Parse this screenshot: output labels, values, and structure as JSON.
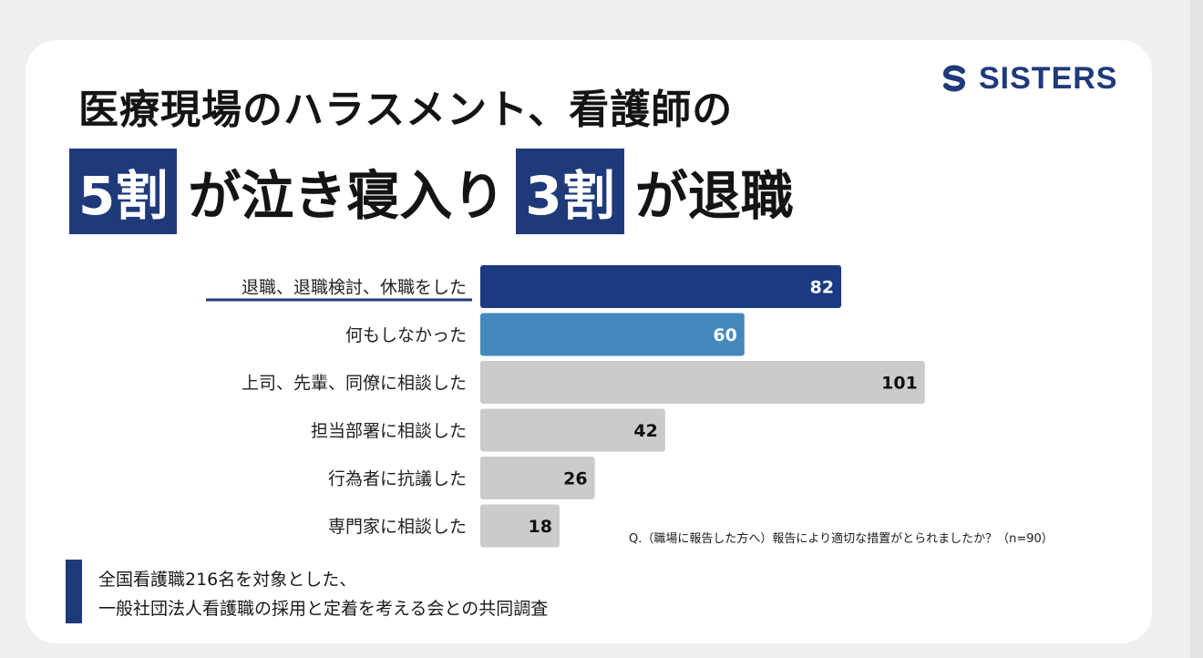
{
  "brand": {
    "name": "SISTERS"
  },
  "title": {
    "line1": "医療現場のハラスメント、看護師の",
    "line2_parts": [
      {
        "text": "5割",
        "highlight": true
      },
      {
        "text": "が泣き寝入り",
        "highlight": false
      },
      {
        "text": "3割",
        "highlight": true
      },
      {
        "text": "が退職",
        "highlight": false
      }
    ]
  },
  "colors": {
    "accent_navy": "#1e3a7a",
    "bar_dark": "#1c3a80",
    "bar_mid": "#4489bd",
    "bar_gray": "#cbcbcb"
  },
  "chart_data": {
    "type": "bar",
    "orientation": "horizontal",
    "categories": [
      "退職、退職検討、休職をした",
      "何もしなかった",
      "上司、先輩、同僚に相談した",
      "担当部署に相談した",
      "行為者に抗議した",
      "専門家に相談した"
    ],
    "values": [
      82,
      60,
      101,
      42,
      26,
      18
    ],
    "bar_colors": [
      "#1c3a80",
      "#4489bd",
      "#cbcbcb",
      "#cbcbcb",
      "#cbcbcb",
      "#cbcbcb"
    ],
    "label_colors": [
      "#ffffff",
      "#ffffff",
      "#111111",
      "#111111",
      "#111111",
      "#111111"
    ],
    "underlined_category": 0,
    "grid": false
  },
  "note": "Q.（職場に報告した方へ）報告により適切な措置がとられましたか？（n=90）",
  "source": {
    "line1": "全国看護職216名を対象とした、",
    "line2": "一般社団法人看護職の採用と定着を考える会との共同調査"
  }
}
